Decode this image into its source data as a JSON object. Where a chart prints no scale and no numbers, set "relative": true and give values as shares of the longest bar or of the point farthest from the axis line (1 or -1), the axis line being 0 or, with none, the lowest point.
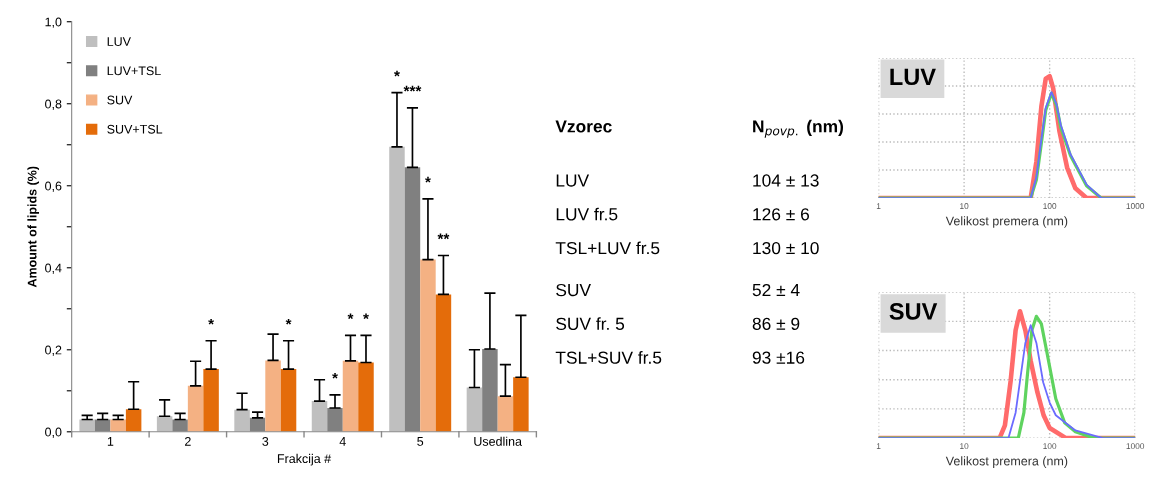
{
  "chart_data": [
    {
      "type": "bar",
      "xlabel": "Frakcija #",
      "ylabel": "Amount of lipids (%)",
      "categories": [
        "1",
        "2",
        "3",
        "4",
        "5",
        "Usedlina"
      ],
      "ylim": [
        0,
        1
      ],
      "yticks": [
        {
          "value": 0,
          "label": "0,0"
        },
        {
          "value": 0.1,
          "label": null
        },
        {
          "value": 0.2,
          "label": "0,2"
        },
        {
          "value": 0.3,
          "label": null
        },
        {
          "value": 0.4,
          "label": "0,4"
        },
        {
          "value": 0.5,
          "label": null
        },
        {
          "value": 0.6,
          "label": "0,6"
        },
        {
          "value": 0.7,
          "label": null
        },
        {
          "value": 0.8,
          "label": "0,8"
        },
        {
          "value": 0.9,
          "label": null
        },
        {
          "value": 1,
          "label": "1,0"
        }
      ],
      "legend": "top left",
      "grid": false,
      "annotations": [
        "*",
        "*",
        {
          "text": "*",
          "x": "4",
          "y": 0.09
        },
        {
          "text": "*",
          "x": "4",
          "y": 0.235
        },
        {
          "text": "*",
          "x": "4",
          "y": 0.235
        },
        "*",
        {
          "text": "***",
          "x": "5",
          "y": 0.79
        },
        {
          "text": "*",
          "x": "5",
          "y": 0.568
        },
        {
          "text": "**",
          "x": "5",
          "y": 0.43
        }
      ],
      "series": [
        {
          "name": "LUV",
          "color": "#bfbfbf",
          "values": [
            0.03,
            0.038,
            0.054,
            0.075,
            0.695,
            0.108
          ],
          "errors": [
            [
              0.03,
              0.04
            ],
            [
              0.038,
              0.078
            ],
            [
              0.054,
              0.094
            ],
            [
              0.075,
              0.127
            ],
            [
              0.695,
              0.827
            ],
            [
              0.108,
              0.2
            ]
          ]
        },
        {
          "name": "LUV+TSL",
          "color": "#808080",
          "values": [
            0.03,
            0.03,
            0.034,
            0.058,
            0.645,
            0.202
          ],
          "errors": [
            [
              0.03,
              0.045
            ],
            [
              0.03,
              0.045
            ],
            [
              0.034,
              0.048
            ],
            [
              0.058,
              0.09
            ],
            [
              0.645,
              0.79
            ],
            [
              0.202,
              0.338
            ]
          ]
        },
        {
          "name": "SUV",
          "color": "#f4b183",
          "values": [
            0.03,
            0.112,
            0.174,
            0.173,
            0.42,
            0.087
          ],
          "errors": [
            [
              0.03,
              0.04
            ],
            [
              0.112,
              0.172
            ],
            [
              0.174,
              0.238
            ],
            [
              0.173,
              0.235
            ],
            [
              0.42,
              0.568
            ],
            [
              0.087,
              0.164
            ]
          ]
        },
        {
          "name": "SUV+TSL",
          "color": "#e46c0a",
          "values": [
            0.055,
            0.153,
            0.153,
            0.169,
            0.335,
            0.133
          ],
          "errors": [
            [
              0.055,
              0.122
            ],
            [
              0.153,
              0.222
            ],
            [
              0.153,
              0.222
            ],
            [
              0.169,
              0.235
            ],
            [
              0.335,
              0.43
            ],
            [
              0.133,
              0.284
            ]
          ]
        }
      ]
    },
    {
      "type": "other",
      "annotations": [
        "Vzorec",
        "N$_{povp.}$ (nm)",
        "LUV",
        "104 ± 13",
        "LUV fr.5",
        "126 ± 6",
        "TSL+LUV fr.5",
        "130 ± 10",
        "SUV",
        "52 ± 4",
        "SUV fr. 5",
        "86 ± 9",
        "TSL+SUV fr.5",
        "93 ±16"
      ]
    },
    {
      "type": "line",
      "title": "LUV",
      "xlabel": "Velikost premera (nm)",
      "log": "x",
      "xlim": [
        1,
        1000
      ],
      "xticks": [
        1,
        10,
        100,
        1000
      ],
      "relative": true,
      "grid": true,
      "tick_labels": "x",
      "series": [
        {
          "color": "#ff6b6b",
          "x": [
            1,
            60,
            70,
            80,
            90,
            100,
            110,
            130,
            160,
            200,
            270,
            1000
          ],
          "values": [
            0,
            0,
            0.3,
            0.75,
            0.98,
            1,
            0.9,
            0.55,
            0.25,
            0.08,
            0,
            0
          ]
        },
        {
          "color": "#5fd35f",
          "x": [
            1,
            60,
            70,
            80,
            90,
            105,
            120,
            135,
            175,
            270,
            400,
            1000
          ],
          "values": [
            0,
            0,
            0.15,
            0.45,
            0.72,
            0.86,
            0.76,
            0.58,
            0.35,
            0.1,
            0,
            0
          ]
        },
        {
          "color": "#6b6bff",
          "x": [
            1,
            60,
            70,
            80,
            90,
            105,
            120,
            135,
            175,
            270,
            400,
            1000
          ],
          "values": [
            0,
            0,
            0.17,
            0.48,
            0.74,
            0.87,
            0.77,
            0.6,
            0.36,
            0.11,
            0,
            0
          ]
        }
      ]
    },
    {
      "type": "line",
      "title": "SUV",
      "xlabel": "Velikost premera (nm)",
      "log": "x",
      "xlim": [
        1,
        1000
      ],
      "xticks": [
        1,
        10,
        100,
        1000
      ],
      "relative": true,
      "grid": true,
      "tick_labels": "x",
      "series": [
        {
          "color": "#ff6b6b",
          "x": [
            1,
            26,
            30,
            35,
            40,
            45,
            52,
            60,
            72,
            85,
            100,
            155,
            1000
          ],
          "values": [
            0,
            0,
            0.1,
            0.45,
            0.85,
            1,
            0.85,
            0.61,
            0.36,
            0.18,
            0.08,
            0,
            0
          ]
        },
        {
          "color": "#5fd35f",
          "x": [
            1,
            43,
            50,
            55,
            62,
            70,
            80,
            92,
            118,
            150,
            200,
            330,
            1000
          ],
          "values": [
            0,
            0,
            0.2,
            0.5,
            0.85,
            0.96,
            0.9,
            0.69,
            0.31,
            0.12,
            0.05,
            0,
            0
          ]
        },
        {
          "color": "#6b6bff",
          "x": [
            1,
            33,
            40,
            45,
            52,
            60,
            70,
            84,
            100,
            118,
            200,
            420,
            1000
          ],
          "values": [
            0,
            0,
            0.2,
            0.45,
            0.75,
            0.89,
            0.75,
            0.44,
            0.28,
            0.18,
            0.06,
            0,
            0
          ]
        }
      ]
    }
  ]
}
